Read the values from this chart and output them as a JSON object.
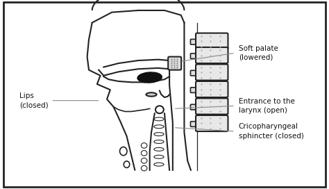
{
  "background_color": "#ffffff",
  "border_color": "#222222",
  "text_color": "#111111",
  "fig_width": 4.74,
  "fig_height": 2.72,
  "labels": {
    "lips": "Lips\n(closed)",
    "soft_palate": "Soft palate\n(lowered)",
    "entrance": "Entrance to the\nlarynx (open)",
    "cricopharyngeal": "Cricopharyngeal\nsphincter (closed)"
  }
}
